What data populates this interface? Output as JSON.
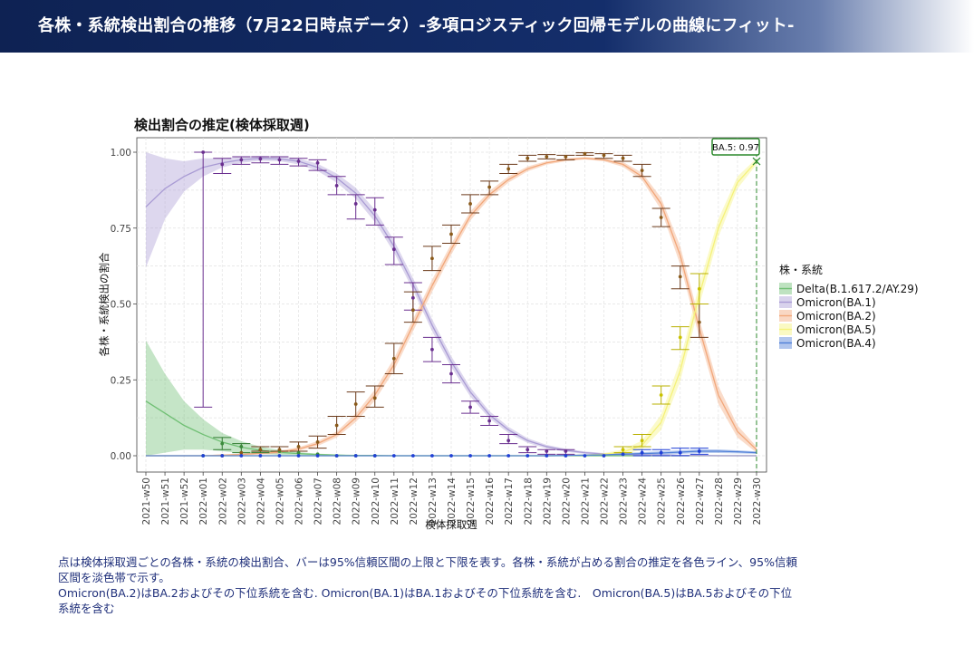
{
  "header": {
    "title": "各株・系統検出割合の推移（7月22日時点データ）-多項ロジスティック回帰モデルの曲線にフィット-"
  },
  "chart_data": {
    "type": "line",
    "title": "検出割合の推定(検体採取週)",
    "xlabel": "検体採取週",
    "ylabel": "各株・系統検出の割合",
    "ylim": [
      0,
      1
    ],
    "yticks": [
      "0.00",
      "0.25",
      "0.50",
      "0.75",
      "1.00"
    ],
    "categories": [
      "2021-w50",
      "2021-w51",
      "2021-w52",
      "2022-w01",
      "2022-w02",
      "2022-w03",
      "2022-w04",
      "2022-w05",
      "2022-w06",
      "2022-w07",
      "2022-w08",
      "2022-w09",
      "2022-w10",
      "2022-w11",
      "2022-w12",
      "2022-w13",
      "2022-w14",
      "2022-w15",
      "2022-w16",
      "2022-w17",
      "2022-w18",
      "2022-w19",
      "2022-w20",
      "2022-w21",
      "2022-w22",
      "2022-w23",
      "2022-w24",
      "2022-w25",
      "2022-w26",
      "2022-w27",
      "2022-w28",
      "2022-w29",
      "2022-w30"
    ],
    "grid": true,
    "legend": {
      "title": "株・系統",
      "position": "right"
    },
    "annotation": {
      "label": "BA.5: 0.97",
      "value": 0.97,
      "x_index": 32
    },
    "series": [
      {
        "name": "Delta(B.1.617.2/AY.29)",
        "color": "#6fbf73",
        "fit": [
          0.18,
          0.14,
          0.1,
          0.07,
          0.045,
          0.028,
          0.018,
          0.011,
          0.007,
          0.004,
          0.002,
          0.001,
          0.001,
          0,
          0,
          0,
          0,
          0,
          0,
          0,
          0,
          0,
          0,
          0,
          0,
          0,
          0,
          0,
          0,
          0,
          0,
          0,
          0
        ],
        "band_width": [
          0.2,
          0.13,
          0.08,
          0.05,
          0.03,
          0.02,
          0.012,
          0.008,
          0.005,
          0.003,
          0.002,
          0.001,
          0.001,
          0,
          0,
          0,
          0,
          0,
          0,
          0,
          0,
          0,
          0,
          0,
          0,
          0,
          0,
          0,
          0,
          0,
          0,
          0,
          0
        ],
        "points": [
          null,
          null,
          null,
          0.0,
          0.04,
          0.03,
          0.02,
          0.015,
          0.01,
          0.005,
          0.0,
          0.0,
          0.0,
          null,
          null,
          null,
          null,
          null,
          null,
          null,
          null,
          null,
          null,
          null,
          null,
          null,
          null,
          null,
          null,
          null,
          null,
          null,
          null
        ],
        "err": [
          null,
          null,
          null,
          null,
          [
            0.02,
            0.06
          ],
          [
            0.01,
            0.04
          ],
          [
            0.01,
            0.03
          ],
          null,
          null,
          null,
          null,
          null,
          null,
          null,
          null,
          null,
          null,
          null,
          null,
          null,
          null,
          null,
          null,
          null,
          null,
          null,
          null,
          null,
          null,
          null,
          null,
          null,
          null
        ]
      },
      {
        "name": "Omicron(BA.1)",
        "color": "#a99bd4",
        "fit": [
          0.82,
          0.88,
          0.92,
          0.95,
          0.965,
          0.975,
          0.98,
          0.978,
          0.97,
          0.95,
          0.915,
          0.865,
          0.79,
          0.69,
          0.565,
          0.43,
          0.31,
          0.21,
          0.135,
          0.085,
          0.05,
          0.03,
          0.018,
          0.01,
          0.006,
          0.004,
          0.003,
          0.002,
          0.001,
          0.001,
          0.0,
          0.0,
          0.0
        ],
        "band_width": [
          0.2,
          0.1,
          0.05,
          0.03,
          0.015,
          0.01,
          0.008,
          0.008,
          0.01,
          0.012,
          0.015,
          0.018,
          0.02,
          0.02,
          0.02,
          0.02,
          0.018,
          0.015,
          0.012,
          0.01,
          0.008,
          0.006,
          0.005,
          0.004,
          0.003,
          0.003,
          0.002,
          0.002,
          0.002,
          0.002,
          0.002,
          0.002,
          0.002
        ],
        "points": [
          null,
          null,
          null,
          1.0,
          0.96,
          0.975,
          0.978,
          0.975,
          0.97,
          0.965,
          0.89,
          0.83,
          0.81,
          0.68,
          0.52,
          0.35,
          0.27,
          0.16,
          0.115,
          0.05,
          0.02,
          0.015,
          0.015,
          null,
          null,
          null,
          null,
          null,
          null,
          null,
          null,
          null,
          null
        ],
        "err": [
          null,
          null,
          null,
          [
            0.16,
            1.0
          ],
          [
            0.93,
            0.98
          ],
          [
            0.96,
            0.985
          ],
          [
            0.965,
            0.985
          ],
          [
            0.96,
            0.985
          ],
          [
            0.955,
            0.98
          ],
          [
            0.94,
            0.975
          ],
          [
            0.86,
            0.92
          ],
          [
            0.78,
            0.86
          ],
          [
            0.76,
            0.85
          ],
          [
            0.63,
            0.72
          ],
          [
            0.48,
            0.57
          ],
          [
            0.31,
            0.39
          ],
          [
            0.24,
            0.3
          ],
          [
            0.14,
            0.18
          ],
          [
            0.1,
            0.13
          ],
          [
            0.04,
            0.07
          ],
          [
            0.01,
            0.03
          ],
          [
            0.005,
            0.02
          ],
          [
            0.005,
            0.02
          ],
          null,
          null,
          null,
          null,
          null,
          null,
          null,
          null,
          null,
          null
        ]
      },
      {
        "name": "Omicron(BA.2)",
        "color": "#f2a77a",
        "fit": [
          0.0,
          0.0,
          0.0,
          0.0,
          0.002,
          0.004,
          0.008,
          0.012,
          0.022,
          0.04,
          0.07,
          0.125,
          0.2,
          0.3,
          0.43,
          0.56,
          0.68,
          0.79,
          0.86,
          0.91,
          0.945,
          0.965,
          0.975,
          0.98,
          0.975,
          0.96,
          0.92,
          0.83,
          0.66,
          0.42,
          0.2,
          0.08,
          0.02
        ],
        "band_width": [
          0.002,
          0.002,
          0.002,
          0.002,
          0.002,
          0.003,
          0.004,
          0.005,
          0.006,
          0.008,
          0.01,
          0.014,
          0.018,
          0.02,
          0.02,
          0.02,
          0.018,
          0.015,
          0.012,
          0.01,
          0.008,
          0.006,
          0.005,
          0.004,
          0.005,
          0.008,
          0.012,
          0.02,
          0.03,
          0.03,
          0.03,
          0.02,
          0.01
        ],
        "points": [
          null,
          null,
          null,
          null,
          0.0,
          0.01,
          0.02,
          0.02,
          0.03,
          0.045,
          0.1,
          0.17,
          0.19,
          0.32,
          0.48,
          0.65,
          0.73,
          0.83,
          0.885,
          0.945,
          0.98,
          0.985,
          0.985,
          0.995,
          0.99,
          0.98,
          0.94,
          0.785,
          0.59,
          0.44,
          null,
          null,
          null
        ],
        "err": [
          null,
          null,
          null,
          null,
          null,
          null,
          [
            0.015,
            0.03
          ],
          [
            0.015,
            0.03
          ],
          [
            0.015,
            0.045
          ],
          [
            0.025,
            0.065
          ],
          [
            0.07,
            0.13
          ],
          [
            0.13,
            0.21
          ],
          [
            0.16,
            0.23
          ],
          [
            0.27,
            0.37
          ],
          [
            0.44,
            0.54
          ],
          [
            0.61,
            0.69
          ],
          [
            0.7,
            0.76
          ],
          [
            0.8,
            0.86
          ],
          [
            0.86,
            0.905
          ],
          [
            0.93,
            0.96
          ],
          [
            0.97,
            0.99
          ],
          [
            0.978,
            0.992
          ],
          [
            0.975,
            0.99
          ],
          [
            0.99,
            0.998
          ],
          [
            0.98,
            0.995
          ],
          [
            0.97,
            0.99
          ],
          [
            0.92,
            0.96
          ],
          [
            0.755,
            0.815
          ],
          [
            0.55,
            0.625
          ],
          [
            0.39,
            0.5
          ],
          null,
          null,
          null
        ]
      },
      {
        "name": "Omicron(BA.5)",
        "color": "#f5f27a",
        "fit": [
          0,
          0,
          0,
          0,
          0,
          0,
          0,
          0,
          0,
          0,
          0,
          0,
          0,
          0,
          0,
          0,
          0,
          0,
          0,
          0,
          0,
          0,
          0.001,
          0.002,
          0.005,
          0.012,
          0.035,
          0.11,
          0.28,
          0.53,
          0.75,
          0.9,
          0.97
        ],
        "band_width": [
          0,
          0,
          0,
          0,
          0,
          0,
          0,
          0,
          0,
          0,
          0,
          0,
          0,
          0,
          0,
          0,
          0,
          0,
          0,
          0,
          0,
          0,
          0.001,
          0.002,
          0.004,
          0.008,
          0.015,
          0.025,
          0.035,
          0.035,
          0.03,
          0.02,
          0.01
        ],
        "points": [
          null,
          null,
          null,
          null,
          null,
          null,
          null,
          null,
          null,
          null,
          null,
          null,
          null,
          null,
          null,
          null,
          null,
          null,
          null,
          null,
          null,
          null,
          null,
          null,
          null,
          0.02,
          0.05,
          0.2,
          0.39,
          0.55,
          null,
          null,
          null
        ],
        "err": [
          null,
          null,
          null,
          null,
          null,
          null,
          null,
          null,
          null,
          null,
          null,
          null,
          null,
          null,
          null,
          null,
          null,
          null,
          null,
          null,
          null,
          null,
          null,
          null,
          null,
          [
            0.01,
            0.03
          ],
          [
            0.03,
            0.07
          ],
          [
            0.17,
            0.23
          ],
          [
            0.35,
            0.425
          ],
          [
            0.5,
            0.6
          ],
          null,
          null,
          null
        ]
      },
      {
        "name": "Omicron(BA.4)",
        "color": "#4f7fd8",
        "fit": [
          0,
          0,
          0,
          0,
          0,
          0,
          0,
          0,
          0,
          0,
          0,
          0,
          0,
          0,
          0,
          0,
          0,
          0,
          0,
          0,
          0,
          0,
          0.001,
          0.002,
          0.003,
          0.005,
          0.007,
          0.009,
          0.012,
          0.015,
          0.015,
          0.013,
          0.01
        ],
        "band_width": [
          0,
          0,
          0,
          0,
          0,
          0,
          0,
          0,
          0,
          0,
          0,
          0,
          0,
          0,
          0,
          0,
          0,
          0,
          0,
          0,
          0,
          0,
          0.001,
          0.002,
          0.003,
          0.004,
          0.005,
          0.006,
          0.006,
          0.006,
          0.006,
          0.005,
          0.004
        ],
        "points": [
          null,
          null,
          null,
          0,
          0,
          0,
          0,
          0,
          0,
          0,
          0,
          0,
          0,
          0,
          0,
          0,
          0,
          0,
          0,
          0,
          0,
          0,
          0,
          0,
          0.0,
          0.005,
          0.01,
          0.01,
          0.01,
          0.015,
          null,
          null,
          null
        ],
        "err": [
          null,
          null,
          null,
          null,
          null,
          null,
          null,
          null,
          null,
          null,
          null,
          null,
          null,
          null,
          null,
          null,
          null,
          null,
          null,
          null,
          null,
          null,
          null,
          null,
          null,
          null,
          [
            0.0,
            0.02
          ],
          [
            0.0,
            0.02
          ],
          [
            0.0,
            0.025
          ],
          [
            0.005,
            0.025
          ],
          null,
          null,
          null
        ]
      }
    ]
  },
  "notes": {
    "line1": "点は検体採取週ごとの各株・系統の検出割合、バーは95%信頼区間の上限と下限を表す。各株・系統が占める割合の推定を各色ライン、95%信頼区間を淡色帯で示す。",
    "line2": "Omicron(BA.2)はBA.2およびその下位系統を含む. Omicron(BA.1)はBA.1およびその下位系統を含む.　Omicron(BA.5)はBA.5およびその下位系統を含む"
  }
}
